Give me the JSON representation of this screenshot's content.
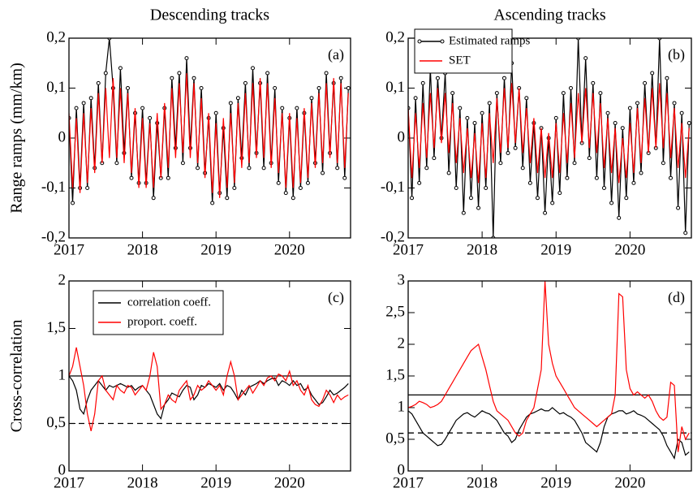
{
  "chart_data": [
    {
      "type": "line",
      "title": "Descending tracks",
      "y_label": "Range ramps (mm/km)",
      "panel_label": "(a)",
      "x": [
        2017,
        2017.05,
        2017.1,
        2017.15,
        2017.2,
        2017.25,
        2017.3,
        2017.35,
        2017.4,
        2017.45,
        2017.5,
        2017.55,
        2017.6,
        2017.65,
        2017.7,
        2017.75,
        2017.8,
        2017.85,
        2017.9,
        2017.95,
        2018,
        2018.05,
        2018.1,
        2018.15,
        2018.2,
        2018.25,
        2018.3,
        2018.35,
        2018.4,
        2018.45,
        2018.5,
        2018.55,
        2018.6,
        2018.65,
        2018.7,
        2018.75,
        2018.8,
        2018.85,
        2018.9,
        2018.95,
        2019,
        2019.05,
        2019.1,
        2019.15,
        2019.2,
        2019.25,
        2019.3,
        2019.35,
        2019.4,
        2019.45,
        2019.5,
        2019.55,
        2019.6,
        2019.65,
        2019.7,
        2019.75,
        2019.8,
        2019.85,
        2019.9,
        2019.95,
        2020,
        2020.05,
        2020.1,
        2020.15,
        2020.2,
        2020.25,
        2020.3,
        2020.35,
        2020.4,
        2020.45,
        2020.5,
        2020.55,
        2020.6,
        2020.65,
        2020.7,
        2020.75,
        2020.8
      ],
      "series": [
        {
          "color": "#000000",
          "marker": "circle",
          "values": [
            0.04,
            -0.13,
            0.06,
            -0.1,
            0.07,
            -0.1,
            0.08,
            -0.06,
            0.11,
            -0.05,
            0.13,
            0.2,
            0.1,
            -0.05,
            0.14,
            -0.03,
            0.1,
            -0.08,
            0.05,
            -0.09,
            0.06,
            -0.09,
            0.04,
            -0.12,
            0.03,
            -0.08,
            0.06,
            -0.08,
            0.12,
            -0.02,
            0.13,
            -0.05,
            0.16,
            -0.02,
            0.12,
            -0.06,
            0.1,
            -0.07,
            0.04,
            -0.13,
            0.05,
            -0.11,
            0.02,
            -0.12,
            0.07,
            -0.1,
            0.08,
            -0.04,
            0.11,
            -0.06,
            0.14,
            -0.03,
            0.11,
            -0.06,
            0.13,
            -0.05,
            0.1,
            -0.09,
            0.06,
            -0.11,
            0.04,
            -0.12,
            0.06,
            -0.1,
            0.05,
            -0.09,
            0.08,
            -0.05,
            0.1,
            -0.07,
            0.13,
            -0.03,
            0.11,
            -0.06,
            0.12,
            -0.08,
            0.1
          ]
        },
        {
          "color": "#ff0000",
          "values": [
            0.05,
            -0.1,
            0.04,
            -0.11,
            0.05,
            -0.09,
            0.06,
            -0.07,
            0.09,
            -0.05,
            0.1,
            -0.04,
            0.12,
            -0.04,
            0.1,
            -0.05,
            0.09,
            -0.07,
            0.06,
            -0.1,
            0.04,
            -0.1,
            0.03,
            -0.1,
            0.05,
            -0.08,
            0.07,
            -0.06,
            0.1,
            -0.04,
            0.11,
            -0.03,
            0.13,
            -0.04,
            0.11,
            -0.05,
            0.08,
            -0.08,
            0.05,
            -0.11,
            0.03,
            -0.12,
            0.04,
            -0.1,
            0.05,
            -0.09,
            0.07,
            -0.06,
            0.09,
            -0.05,
            0.11,
            -0.04,
            0.12,
            -0.04,
            0.11,
            -0.06,
            0.08,
            -0.07,
            0.05,
            -0.1,
            0.05,
            -0.1,
            0.04,
            -0.09,
            0.06,
            -0.08,
            0.07,
            -0.06,
            0.09,
            -0.05,
            0.11,
            -0.04,
            0.12,
            -0.05,
            0.11,
            -0.06,
            0.09
          ]
        }
      ],
      "xlim": [
        2017,
        2020.83
      ],
      "xticks": [
        2017,
        2018,
        2019,
        2020
      ],
      "ylim": [
        -0.2,
        0.2
      ],
      "yticks": [
        {
          "value": -0.2,
          "label": "-0,2"
        },
        {
          "value": -0.1,
          "label": "-0,1"
        },
        0,
        {
          "value": 0.1,
          "label": "0,1"
        },
        {
          "value": 0.2,
          "label": "0,2"
        }
      ]
    },
    {
      "type": "line",
      "title": "Ascending tracks",
      "panel_label": "(b)",
      "legend": "upper left",
      "x": [
        2017,
        2017.05,
        2017.1,
        2017.15,
        2017.2,
        2017.25,
        2017.3,
        2017.35,
        2017.4,
        2017.45,
        2017.5,
        2017.55,
        2017.6,
        2017.65,
        2017.7,
        2017.75,
        2017.8,
        2017.85,
        2017.9,
        2017.95,
        2018,
        2018.05,
        2018.1,
        2018.15,
        2018.2,
        2018.25,
        2018.3,
        2018.35,
        2018.4,
        2018.45,
        2018.5,
        2018.55,
        2018.6,
        2018.65,
        2018.7,
        2018.75,
        2018.8,
        2018.85,
        2018.9,
        2018.95,
        2019,
        2019.05,
        2019.1,
        2019.15,
        2019.2,
        2019.25,
        2019.3,
        2019.35,
        2019.4,
        2019.45,
        2019.5,
        2019.55,
        2019.6,
        2019.65,
        2019.7,
        2019.75,
        2019.8,
        2019.85,
        2019.9,
        2019.95,
        2020,
        2020.05,
        2020.1,
        2020.15,
        2020.2,
        2020.25,
        2020.3,
        2020.35,
        2020.4,
        2020.45,
        2020.5,
        2020.55,
        2020.6,
        2020.65,
        2020.7,
        2020.75,
        2020.8
      ],
      "series": [
        {
          "name": "Estimated ramps",
          "color": "#000000",
          "marker": "circle",
          "values": [
            0.06,
            -0.12,
            0.08,
            -0.09,
            0.11,
            -0.06,
            0.14,
            -0.04,
            0.12,
            0.0,
            0.13,
            -0.07,
            0.09,
            -0.1,
            0.06,
            -0.15,
            0.04,
            -0.12,
            0.03,
            -0.14,
            0.05,
            -0.1,
            0.07,
            -0.2,
            0.09,
            -0.05,
            0.12,
            -0.03,
            0.15,
            -0.02,
            0.1,
            -0.06,
            0.08,
            -0.09,
            0.03,
            -0.12,
            0.02,
            -0.15,
            0.0,
            -0.13,
            0.04,
            -0.11,
            0.09,
            -0.08,
            0.1,
            -0.05,
            0.2,
            -0.01,
            0.16,
            -0.04,
            0.11,
            -0.08,
            0.09,
            -0.1,
            0.05,
            -0.13,
            0.03,
            -0.16,
            0.02,
            -0.12,
            0.06,
            -0.09,
            0.07,
            -0.07,
            0.11,
            -0.03,
            0.13,
            -0.02,
            0.2,
            -0.05,
            0.12,
            -0.08,
            0.07,
            -0.14,
            0.05,
            -0.19,
            0.03
          ]
        },
        {
          "name": "SET",
          "color": "#ff0000",
          "values": [
            0.06,
            -0.08,
            0.05,
            -0.06,
            0.07,
            -0.04,
            0.09,
            -0.02,
            0.1,
            -0.01,
            0.09,
            -0.03,
            0.07,
            -0.05,
            0.04,
            -0.07,
            0.02,
            -0.08,
            0.01,
            -0.09,
            0.03,
            -0.08,
            0.05,
            -0.05,
            0.08,
            -0.03,
            0.1,
            -0.02,
            0.11,
            -0.01,
            0.1,
            -0.03,
            0.06,
            -0.05,
            0.04,
            -0.07,
            0.02,
            -0.08,
            0.01,
            -0.08,
            0.03,
            -0.07,
            0.05,
            -0.05,
            0.07,
            -0.04,
            0.09,
            -0.01,
            0.1,
            -0.02,
            0.09,
            -0.03,
            0.07,
            -0.06,
            0.04,
            -0.07,
            0.02,
            -0.09,
            0.0,
            -0.08,
            0.03,
            -0.07,
            0.06,
            -0.05,
            0.08,
            -0.03,
            0.1,
            -0.02,
            0.11,
            -0.02,
            0.09,
            -0.04,
            0.06,
            -0.06,
            0.03,
            -0.08,
            0.02
          ]
        }
      ],
      "xlim": [
        2017,
        2020.83
      ],
      "xticks": [
        2017,
        2018,
        2019,
        2020
      ],
      "ylim": [
        -0.2,
        0.2
      ],
      "yticks": [
        {
          "value": -0.2,
          "label": "-0,2"
        },
        {
          "value": -0.1,
          "label": "-0,1"
        },
        0,
        {
          "value": 0.1,
          "label": "0,1"
        },
        {
          "value": 0.2,
          "label": "0,2"
        }
      ]
    },
    {
      "type": "line",
      "y_label": "Cross-correlation",
      "panel_label": "(c)",
      "legend": "upper left",
      "x": [
        2017,
        2017.05,
        2017.1,
        2017.15,
        2017.2,
        2017.25,
        2017.3,
        2017.35,
        2017.4,
        2017.45,
        2017.5,
        2017.55,
        2017.6,
        2017.65,
        2017.7,
        2017.75,
        2017.8,
        2017.85,
        2017.9,
        2017.95,
        2018,
        2018.05,
        2018.1,
        2018.15,
        2018.2,
        2018.25,
        2018.3,
        2018.35,
        2018.4,
        2018.45,
        2018.5,
        2018.55,
        2018.6,
        2018.65,
        2018.7,
        2018.75,
        2018.8,
        2018.85,
        2018.9,
        2018.95,
        2019,
        2019.05,
        2019.1,
        2019.15,
        2019.2,
        2019.25,
        2019.3,
        2019.35,
        2019.4,
        2019.45,
        2019.5,
        2019.55,
        2019.6,
        2019.65,
        2019.7,
        2019.75,
        2019.8,
        2019.85,
        2019.9,
        2019.95,
        2020,
        2020.05,
        2020.1,
        2020.15,
        2020.2,
        2020.25,
        2020.3,
        2020.35,
        2020.4,
        2020.45,
        2020.5,
        2020.55,
        2020.6,
        2020.65,
        2020.7,
        2020.75,
        2020.8
      ],
      "series": [
        {
          "name": "correlation coeff.",
          "color": "#000000",
          "values": [
            1.0,
            0.95,
            0.85,
            0.65,
            0.6,
            0.75,
            0.85,
            0.9,
            0.95,
            0.9,
            0.85,
            0.9,
            0.88,
            0.9,
            0.92,
            0.9,
            0.88,
            0.9,
            0.85,
            0.88,
            0.9,
            0.85,
            0.8,
            0.7,
            0.6,
            0.55,
            0.7,
            0.75,
            0.82,
            0.8,
            0.78,
            0.85,
            0.9,
            0.88,
            0.75,
            0.8,
            0.9,
            0.88,
            0.92,
            0.9,
            0.88,
            0.92,
            0.85,
            0.9,
            0.88,
            0.82,
            0.75,
            0.85,
            0.8,
            0.88,
            0.9,
            0.92,
            0.95,
            0.92,
            0.95,
            0.97,
            0.98,
            0.9,
            0.95,
            0.93,
            0.9,
            0.95,
            0.9,
            0.92,
            0.85,
            0.88,
            0.8,
            0.75,
            0.7,
            0.72,
            0.78,
            0.85,
            0.8,
            0.82,
            0.85,
            0.88,
            0.92
          ]
        },
        {
          "name": "proport. coeff.",
          "color": "#ff0000",
          "values": [
            1.0,
            1.1,
            1.3,
            1.1,
            0.9,
            0.6,
            0.42,
            0.6,
            0.95,
            1.0,
            0.85,
            0.8,
            0.75,
            0.9,
            0.85,
            0.82,
            0.9,
            0.88,
            0.8,
            0.85,
            0.9,
            0.85,
            1.0,
            1.25,
            1.1,
            0.65,
            0.7,
            0.8,
            0.75,
            0.72,
            0.85,
            0.9,
            0.95,
            0.75,
            0.8,
            0.9,
            0.85,
            0.88,
            0.95,
            0.9,
            0.85,
            0.9,
            0.8,
            1.0,
            1.15,
            1.0,
            0.75,
            0.8,
            0.85,
            0.9,
            0.82,
            0.88,
            0.95,
            0.9,
            0.98,
            1.0,
            0.95,
            1.02,
            1.0,
            0.95,
            1.05,
            0.9,
            0.95,
            0.85,
            0.8,
            0.9,
            0.75,
            0.7,
            0.68,
            0.75,
            0.85,
            0.8,
            0.72,
            0.8,
            0.75,
            0.78,
            0.8
          ]
        }
      ],
      "hlines": [
        {
          "y": 1,
          "style": "solid"
        },
        {
          "y": 0.5,
          "style": "dashed"
        }
      ],
      "xlim": [
        2017,
        2020.83
      ],
      "xticks": [
        2017,
        2018,
        2019,
        2020
      ],
      "ylim": [
        0,
        2
      ],
      "yticks": [
        0,
        {
          "value": 0.5,
          "label": "0,5"
        },
        1,
        {
          "value": 1.5,
          "label": "1,5"
        },
        2
      ]
    },
    {
      "type": "line",
      "panel_label": "(d)",
      "x": [
        2017,
        2017.05,
        2017.1,
        2017.15,
        2017.2,
        2017.25,
        2017.3,
        2017.35,
        2017.4,
        2017.45,
        2017.5,
        2017.55,
        2017.6,
        2017.65,
        2017.7,
        2017.75,
        2017.8,
        2017.85,
        2017.9,
        2017.95,
        2018,
        2018.05,
        2018.1,
        2018.15,
        2018.2,
        2018.25,
        2018.3,
        2018.35,
        2018.4,
        2018.45,
        2018.5,
        2018.55,
        2018.6,
        2018.65,
        2018.7,
        2018.75,
        2018.8,
        2018.85,
        2018.9,
        2018.95,
        2019,
        2019.05,
        2019.1,
        2019.15,
        2019.2,
        2019.25,
        2019.3,
        2019.35,
        2019.4,
        2019.45,
        2019.5,
        2019.55,
        2019.6,
        2019.65,
        2019.7,
        2019.75,
        2019.8,
        2019.85,
        2019.9,
        2019.95,
        2020,
        2020.05,
        2020.1,
        2020.15,
        2020.2,
        2020.25,
        2020.3,
        2020.35,
        2020.4,
        2020.45,
        2020.5,
        2020.55,
        2020.6,
        2020.65,
        2020.7,
        2020.75,
        2020.8
      ],
      "series": [
        {
          "color": "#000000",
          "values": [
            0.95,
            0.9,
            0.8,
            0.7,
            0.6,
            0.55,
            0.5,
            0.45,
            0.4,
            0.42,
            0.5,
            0.6,
            0.7,
            0.8,
            0.85,
            0.9,
            0.92,
            0.88,
            0.85,
            0.9,
            0.95,
            0.92,
            0.9,
            0.85,
            0.8,
            0.7,
            0.6,
            0.55,
            0.45,
            0.5,
            0.65,
            0.75,
            0.85,
            0.9,
            0.92,
            0.95,
            0.98,
            0.95,
            0.95,
            1.0,
            0.95,
            0.9,
            0.92,
            0.88,
            0.85,
            0.8,
            0.7,
            0.6,
            0.45,
            0.4,
            0.35,
            0.3,
            0.45,
            0.7,
            0.85,
            0.9,
            0.92,
            0.95,
            0.95,
            0.9,
            0.92,
            0.95,
            0.9,
            0.88,
            0.85,
            0.8,
            0.75,
            0.7,
            0.65,
            0.55,
            0.4,
            0.3,
            0.2,
            0.5,
            0.45,
            0.25,
            0.3
          ]
        },
        {
          "color": "#ff0000",
          "values": [
            1.0,
            1.02,
            1.05,
            1.1,
            1.08,
            1.05,
            1.0,
            1.02,
            1.05,
            1.1,
            1.2,
            1.3,
            1.4,
            1.5,
            1.6,
            1.7,
            1.8,
            1.9,
            1.95,
            2.0,
            1.8,
            1.6,
            1.35,
            1.1,
            0.95,
            0.9,
            0.85,
            0.8,
            0.7,
            0.6,
            0.55,
            0.6,
            0.8,
            0.9,
            1.0,
            1.3,
            1.6,
            3.0,
            2.0,
            1.7,
            1.5,
            1.4,
            1.3,
            1.2,
            1.1,
            1.0,
            0.95,
            0.9,
            0.85,
            0.8,
            0.75,
            0.7,
            0.75,
            0.8,
            0.85,
            0.9,
            1.2,
            2.8,
            2.75,
            1.6,
            1.3,
            1.2,
            1.25,
            1.2,
            1.15,
            1.2,
            1.1,
            0.95,
            0.85,
            0.8,
            0.85,
            1.4,
            1.35,
            0.3,
            0.7,
            0.5,
            0.6
          ]
        }
      ],
      "hlines": [
        {
          "y": 1.2,
          "style": "solid"
        },
        {
          "y": 0.6,
          "style": "dashed"
        }
      ],
      "xlim": [
        2017,
        2020.83
      ],
      "xticks": [
        2017,
        2018,
        2019,
        2020
      ],
      "ylim": [
        0,
        3
      ],
      "yticks": [
        0,
        {
          "value": 0.5,
          "label": "0,5"
        },
        1,
        {
          "value": 1.5,
          "label": "1,5"
        },
        2,
        {
          "value": 2.5,
          "label": "2,5"
        },
        3
      ]
    }
  ]
}
